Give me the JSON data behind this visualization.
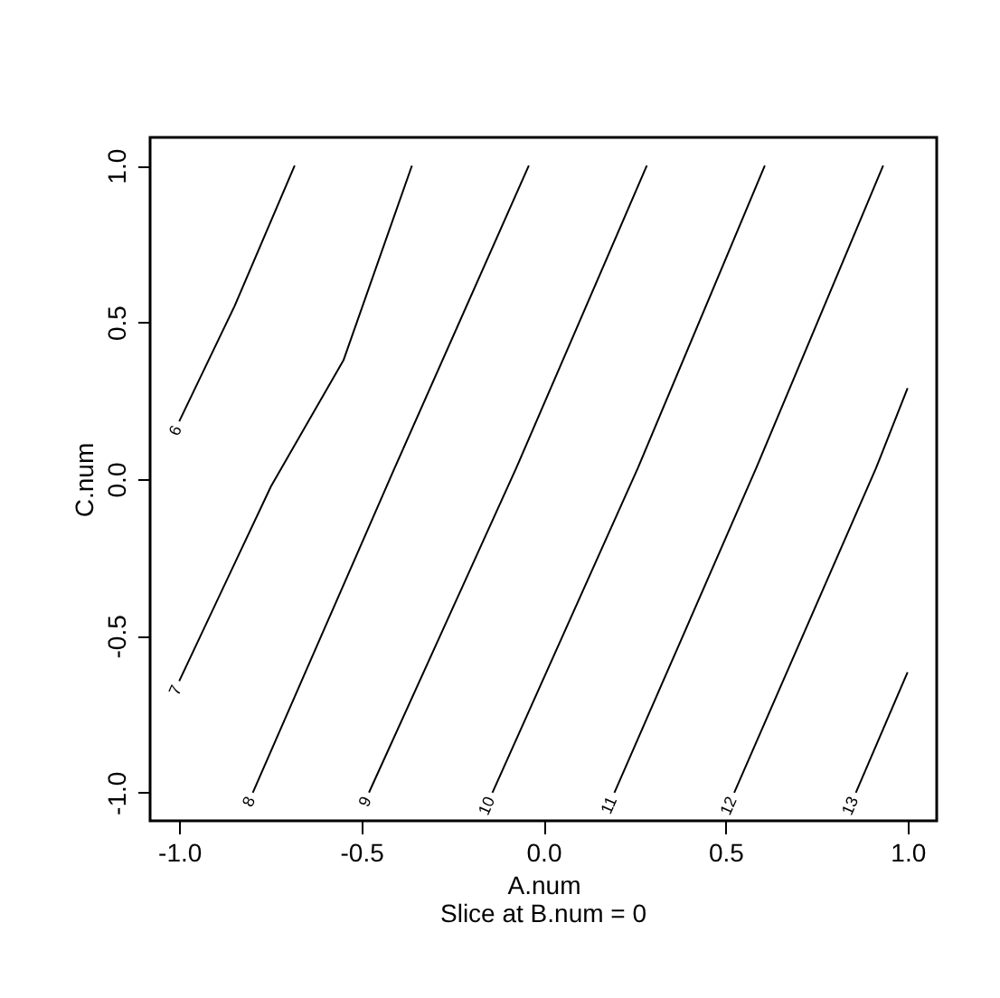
{
  "chart_data": {
    "type": "line",
    "xlabel": "A.num",
    "ylabel": "C.num",
    "annotations": [
      "Slice at B.num = 0"
    ],
    "xlim": [
      -1.08,
      1.08
    ],
    "ylim": [
      -1.09,
      1.09
    ],
    "xticks": [
      {
        "value": -1.0,
        "label": "-1.0"
      },
      {
        "value": -0.5,
        "label": "-0.5"
      },
      {
        "value": 0.0,
        "label": "0.0"
      },
      {
        "value": 0.5,
        "label": "0.5"
      },
      {
        "value": 1.0,
        "label": "1.0"
      }
    ],
    "yticks": [
      {
        "value": -1.0,
        "label": "-1.0"
      },
      {
        "value": -0.5,
        "label": "-0.5"
      },
      {
        "value": 0.0,
        "label": "0.0"
      },
      {
        "value": 0.5,
        "label": "0.5"
      },
      {
        "value": 1.0,
        "label": "1.0"
      }
    ],
    "grid": false,
    "marker": "none",
    "line_style": "solid",
    "series": [
      {
        "name": "6",
        "color": "#000000",
        "x": [
          -1.0,
          -0.848,
          -0.683
        ],
        "values": [
          0.184,
          0.552,
          1.0
        ]
      },
      {
        "name": "7",
        "color": "#000000",
        "x": [
          -1.0,
          -0.748,
          -0.549,
          -0.361
        ],
        "values": [
          -0.644,
          -0.023,
          0.379,
          1.0
        ]
      },
      {
        "name": "8",
        "color": "#000000",
        "x": [
          -0.798,
          -0.409,
          -0.04
        ],
        "values": [
          -1.0,
          0.034,
          1.0
        ]
      },
      {
        "name": "9",
        "color": "#000000",
        "x": [
          -0.479,
          -0.075,
          0.284
        ],
        "values": [
          -1.0,
          0.034,
          1.0
        ]
      },
      {
        "name": "10",
        "color": "#000000",
        "x": [
          -0.14,
          0.259,
          0.608
        ],
        "values": [
          -1.0,
          0.034,
          1.0
        ]
      },
      {
        "name": "11",
        "color": "#000000",
        "x": [
          0.195,
          0.584,
          0.933
        ],
        "values": [
          -1.0,
          0.034,
          1.0
        ]
      },
      {
        "name": "12",
        "color": "#000000",
        "x": [
          0.524,
          0.913,
          1.0
        ],
        "values": [
          -1.0,
          0.034,
          0.29
        ]
      },
      {
        "name": "13",
        "color": "#000000",
        "x": [
          0.858,
          1.0
        ],
        "values": [
          -1.0,
          -0.616
        ]
      }
    ]
  }
}
